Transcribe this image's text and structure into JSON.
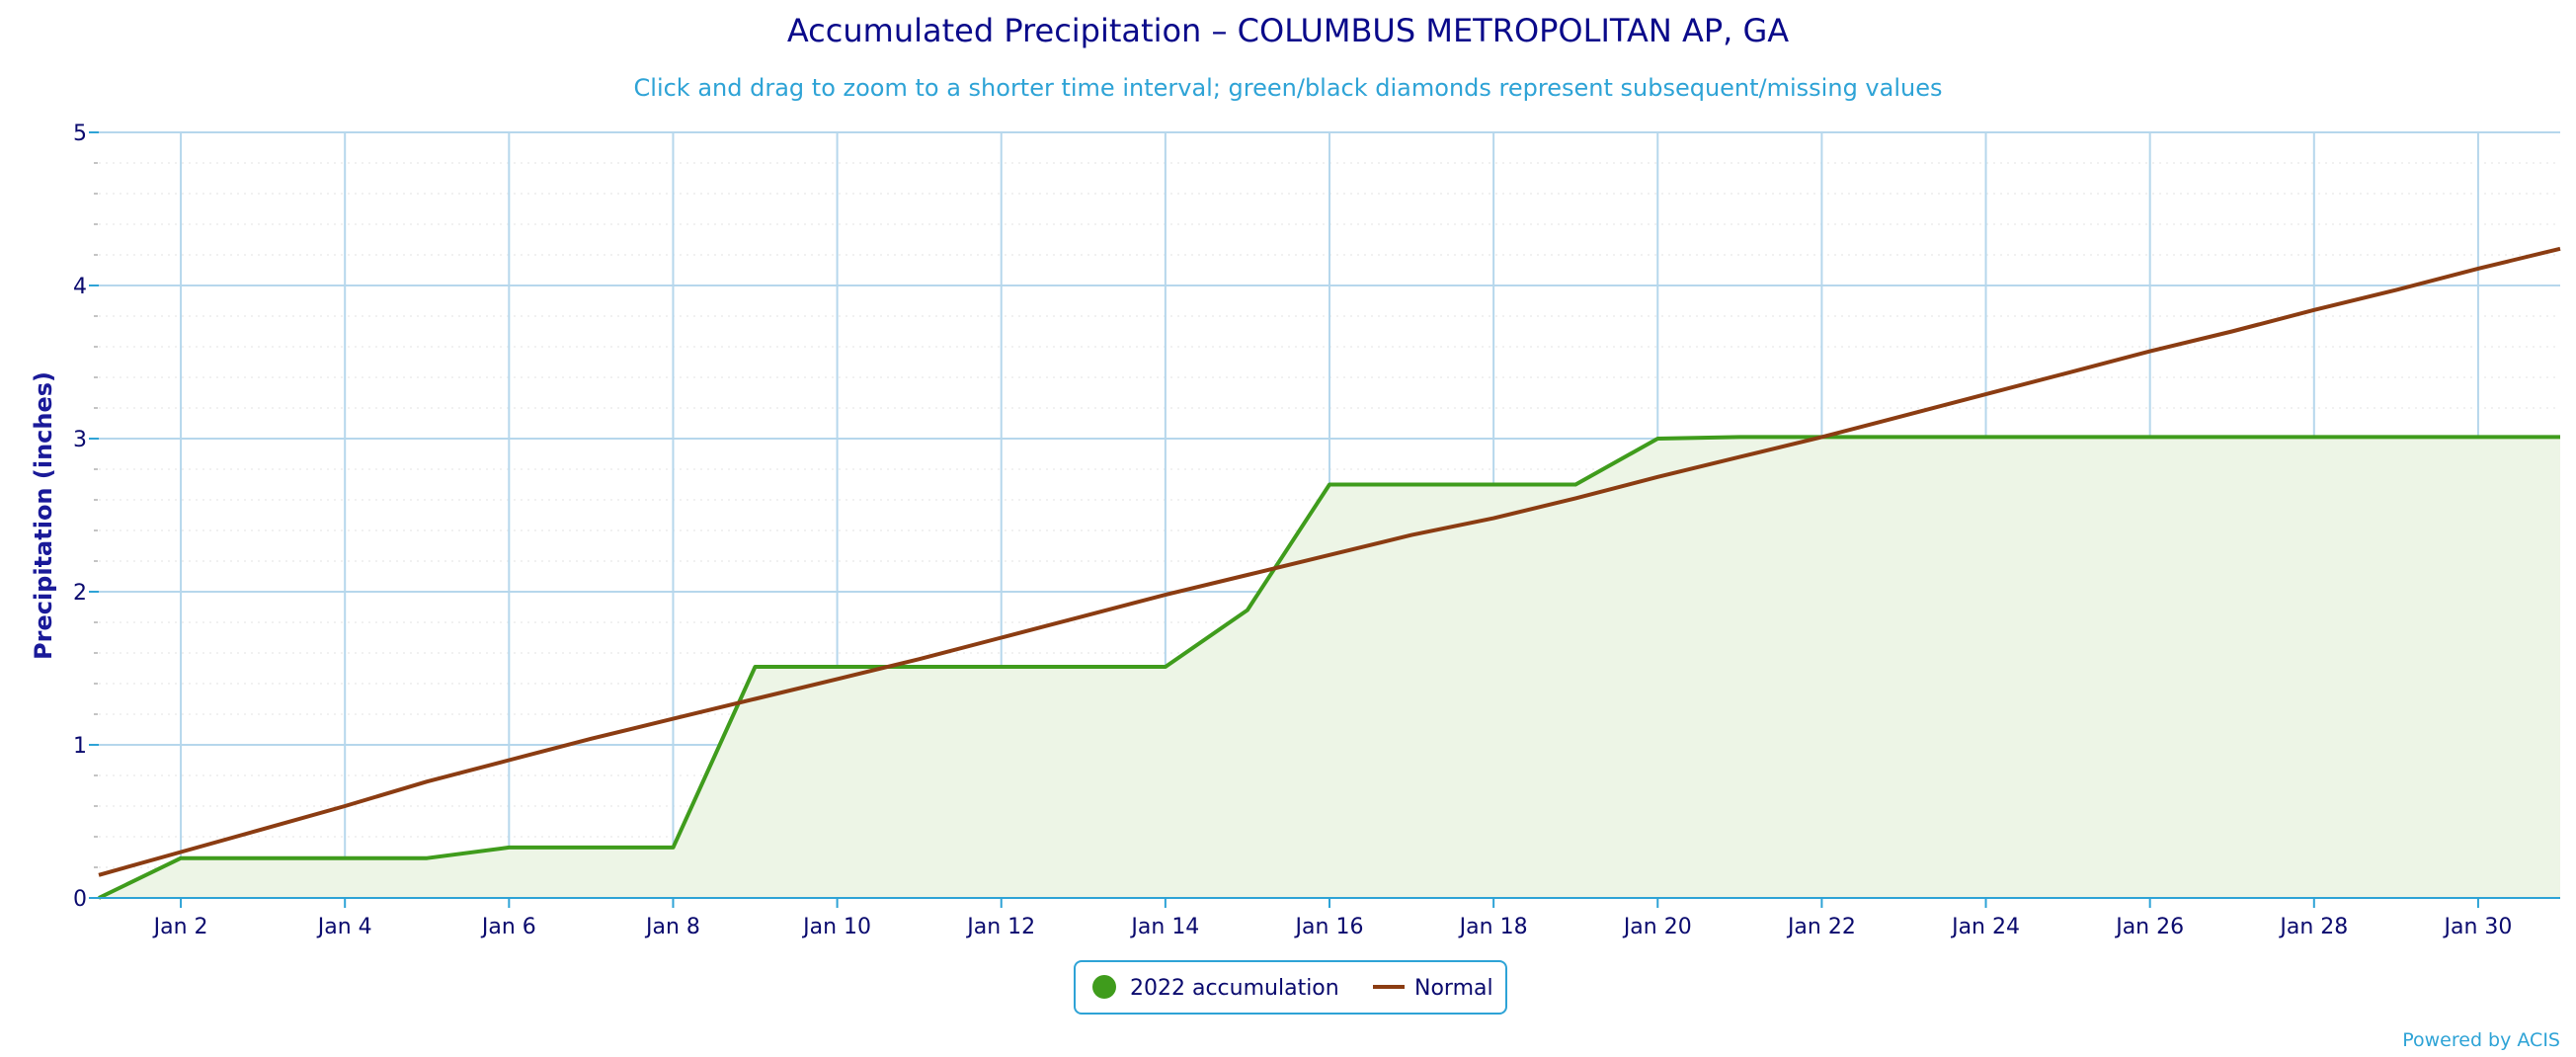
{
  "chart_data": {
    "type": "area",
    "title": "Accumulated Precipitation – COLUMBUS METROPOLITAN AP, GA",
    "subtitle": "Click and drag to zoom to a shorter time interval; green/black diamonds represent subsequent/missing values",
    "ylabel": "Precipitation (inches)",
    "xlabel": "",
    "ylim": [
      0,
      5
    ],
    "y_ticks": [
      "0",
      "1",
      "2",
      "3",
      "4",
      "5"
    ],
    "x_ticks": [
      "Jan 2",
      "Jan 4",
      "Jan 6",
      "Jan 8",
      "Jan 10",
      "Jan 12",
      "Jan 14",
      "Jan 16",
      "Jan 18",
      "Jan 20",
      "Jan 22",
      "Jan 24",
      "Jan 26",
      "Jan 28",
      "Jan 30"
    ],
    "grid": true,
    "legend_position": "bottom-center",
    "x": [
      "Jan 1",
      "Jan 2",
      "Jan 3",
      "Jan 4",
      "Jan 5",
      "Jan 6",
      "Jan 7",
      "Jan 8",
      "Jan 9",
      "Jan 10",
      "Jan 11",
      "Jan 12",
      "Jan 13",
      "Jan 14",
      "Jan 15",
      "Jan 16",
      "Jan 17",
      "Jan 18",
      "Jan 19",
      "Jan 20",
      "Jan 21",
      "Jan 22",
      "Jan 23",
      "Jan 24",
      "Jan 25",
      "Jan 26",
      "Jan 27",
      "Jan 28",
      "Jan 29",
      "Jan 30",
      "Jan 31"
    ],
    "series": [
      {
        "name": "2022 accumulation",
        "color": "#3f9c1c",
        "fill": "#edf5e6",
        "style": "area",
        "values": [
          0.0,
          0.26,
          0.26,
          0.26,
          0.26,
          0.33,
          0.33,
          0.33,
          1.51,
          1.51,
          1.51,
          1.51,
          1.51,
          1.51,
          1.88,
          2.7,
          2.7,
          2.7,
          2.7,
          3.0,
          3.01,
          3.01,
          3.01,
          3.01,
          3.01,
          3.01,
          3.01,
          3.01,
          3.01,
          3.01,
          3.01
        ]
      },
      {
        "name": "Normal",
        "color": "#8b3c12",
        "style": "line",
        "values": [
          0.15,
          0.3,
          0.45,
          0.6,
          0.76,
          0.9,
          1.04,
          1.17,
          1.3,
          1.43,
          1.56,
          1.7,
          1.84,
          1.98,
          2.11,
          2.24,
          2.37,
          2.48,
          2.61,
          2.75,
          2.88,
          3.01,
          3.15,
          3.29,
          3.43,
          3.57,
          3.7,
          3.84,
          3.97,
          4.11,
          4.24
        ]
      }
    ]
  },
  "credit": "Powered by ACIS"
}
